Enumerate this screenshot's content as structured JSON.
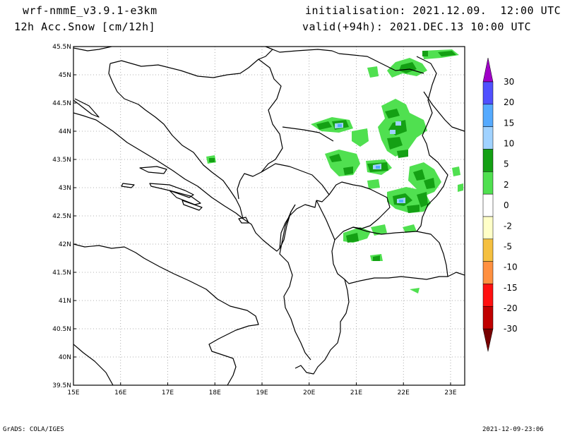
{
  "header": {
    "model": "wrf-nmmE_v3.9.1-e3km",
    "variable": "12h Acc.Snow [cm/12h]",
    "initialisation": "initialisation: 2021.12.09.  12:00 UTC",
    "valid": "valid(+94h): 2021.DEC.13 10:00 UTC"
  },
  "axes": {
    "lon_ticks": [
      "15E",
      "16E",
      "17E",
      "18E",
      "19E",
      "20E",
      "21E",
      "22E",
      "23E"
    ],
    "lat_ticks": [
      "39.5N",
      "40N",
      "40.5N",
      "41N",
      "41.5N",
      "42N",
      "42.5N",
      "43N",
      "43.5N",
      "44N",
      "44.5N",
      "45N",
      "45.5N"
    ]
  },
  "legend": {
    "labels": [
      "30",
      "20",
      "15",
      "10",
      "5",
      "2",
      "0",
      "-2",
      "-5",
      "-10",
      "-15",
      "-20",
      "-30"
    ],
    "colors": [
      "#a000c8",
      "#5050ff",
      "#55aaff",
      "#a0d2ff",
      "#14a014",
      "#50e050",
      "#ffffff",
      "#ffffc8",
      "#f5c040",
      "#ff9040",
      "#ff1010",
      "#c00000",
      "#780000"
    ]
  },
  "footer": {
    "left": "GrADS: COLA/IGES",
    "right": "2021-12-09-23:06"
  }
}
